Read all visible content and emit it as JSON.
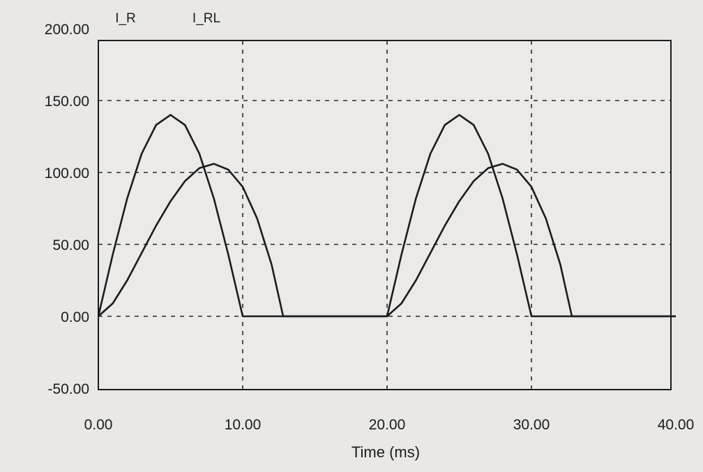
{
  "chart_data": {
    "type": "line",
    "title": "",
    "xlabel": "Time (ms)",
    "ylabel": "",
    "xlim": [
      0,
      40
    ],
    "ylim": [
      -50,
      200
    ],
    "x_ticks": [
      0,
      10,
      20,
      30,
      40
    ],
    "x_tick_labels": [
      "0.00",
      "10.00",
      "20.00",
      "30.00",
      "40.00"
    ],
    "y_ticks": [
      -50,
      0,
      50,
      100,
      150,
      200
    ],
    "y_tick_labels": [
      "-50.00",
      "0.00",
      "50.00",
      "100.00",
      "150.00",
      "200.00"
    ],
    "grid": true,
    "legend_position": "top-left",
    "colors": {
      "background": "#e9e8e6",
      "plot_background": "#ebeae8",
      "line": "#1c1c1c",
      "grid": "#2a2a2a"
    },
    "series": [
      {
        "name": "I_R",
        "x": [
          0,
          1,
          2,
          3,
          4,
          5,
          6,
          7,
          8,
          9,
          10,
          10.5,
          20,
          21,
          22,
          23,
          24,
          25,
          26,
          27,
          28,
          29,
          30,
          30.5,
          40
        ],
        "y": [
          0,
          43,
          82,
          113,
          133,
          140,
          133,
          113,
          82,
          43,
          0,
          0,
          0,
          43,
          82,
          113,
          133,
          140,
          133,
          113,
          82,
          43,
          0,
          0,
          0
        ]
      },
      {
        "name": "I_RL",
        "x": [
          0,
          1,
          2,
          3,
          4,
          5,
          6,
          7,
          8,
          9,
          10,
          11,
          12,
          12.8,
          20,
          21,
          22,
          23,
          24,
          25,
          26,
          27,
          28,
          29,
          30,
          31,
          32,
          32.8,
          40
        ],
        "y": [
          0,
          9,
          25,
          44,
          63,
          80,
          94,
          103,
          106,
          102,
          90,
          68,
          36,
          0,
          0,
          9,
          25,
          44,
          63,
          80,
          94,
          103,
          106,
          102,
          90,
          68,
          36,
          0,
          0
        ]
      }
    ]
  }
}
